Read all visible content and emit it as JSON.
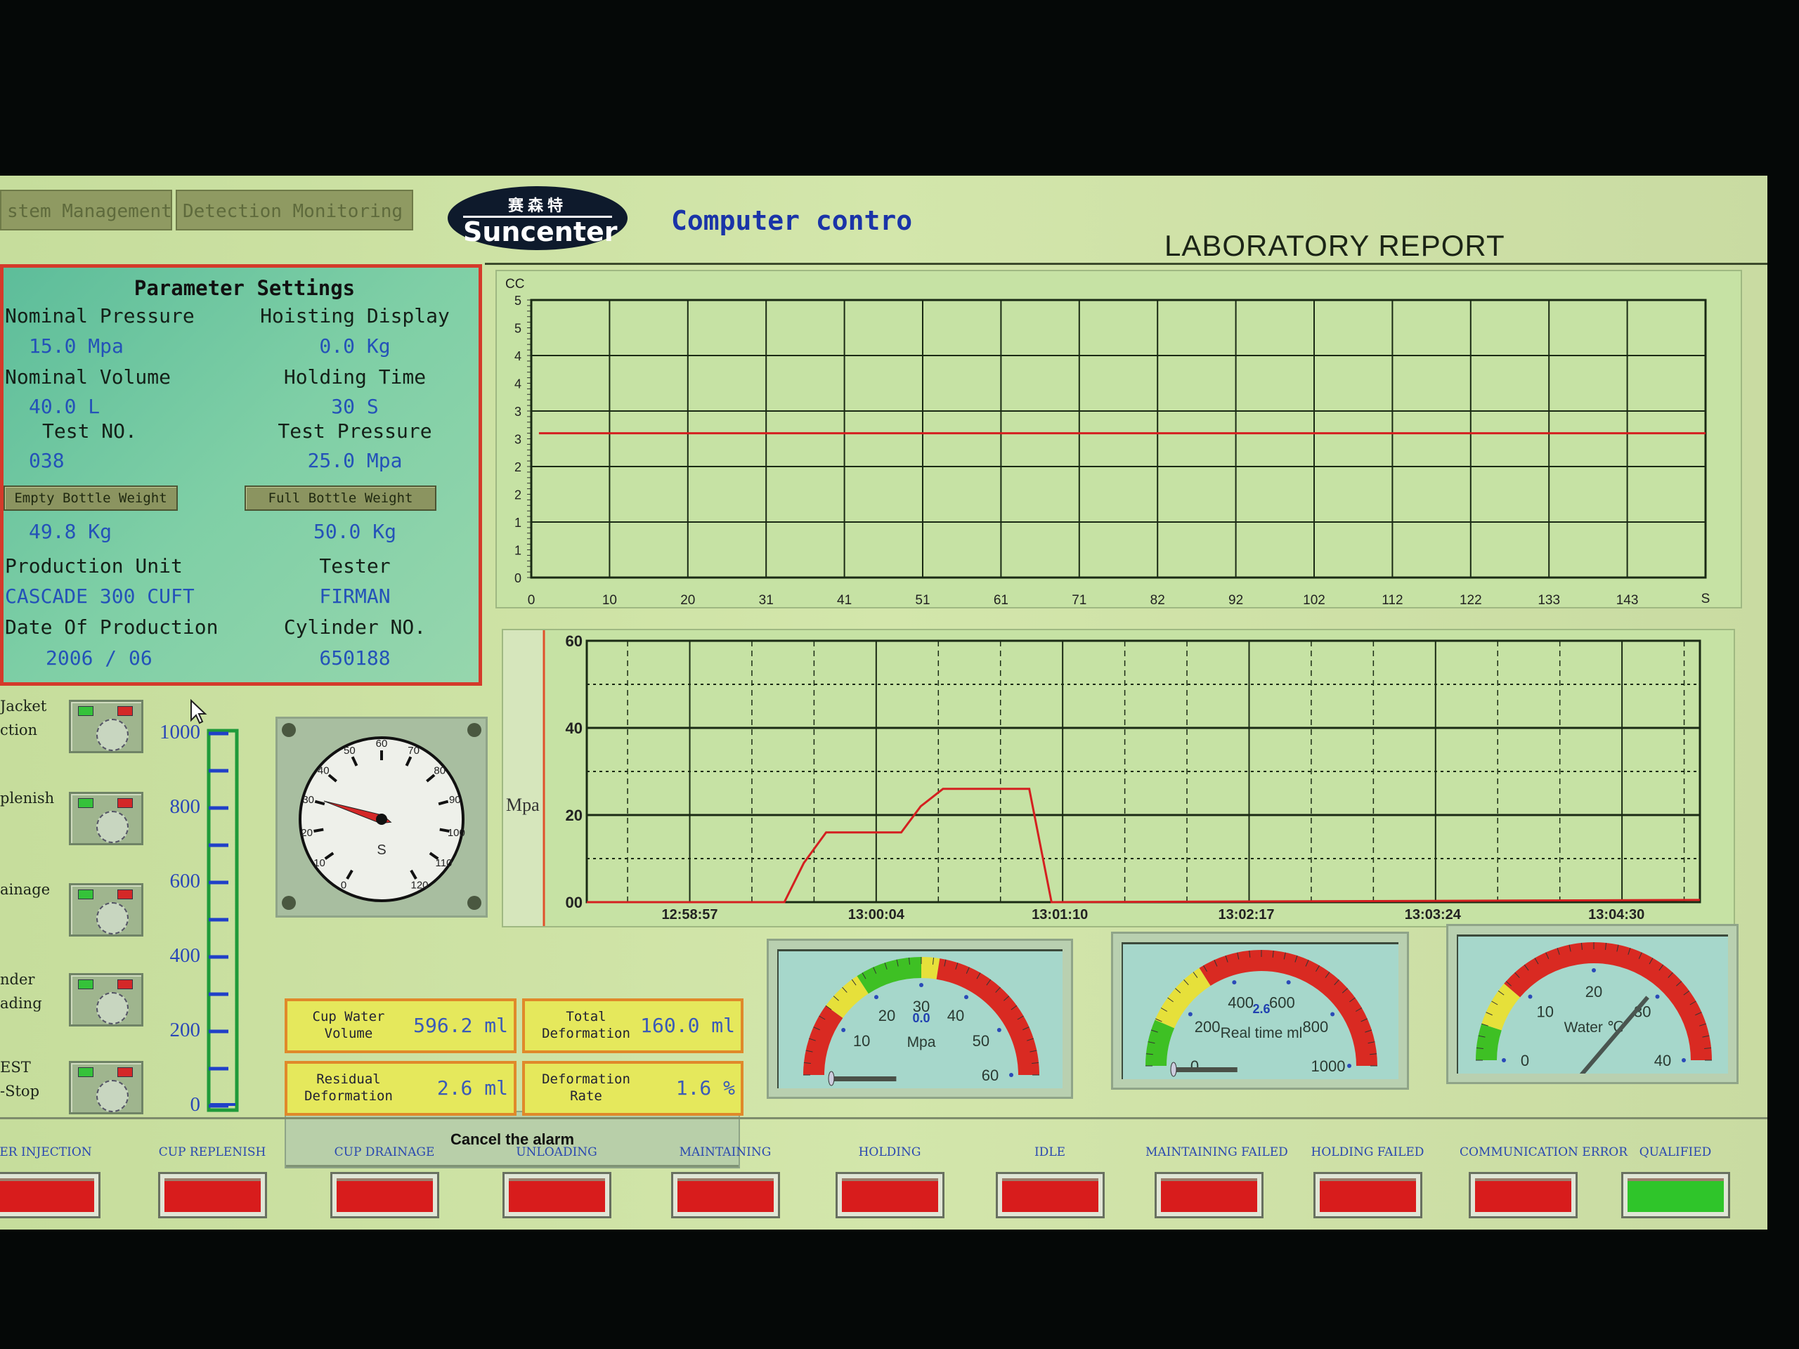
{
  "tabs": [
    {
      "label": "stem Management"
    },
    {
      "label": "Detection Monitoring"
    }
  ],
  "logo": {
    "cn": "赛森特",
    "en": "Suncenter"
  },
  "header": {
    "title": "Computer contro",
    "report_title": "LABORATORY REPORT"
  },
  "params": {
    "title": "Parameter Settings",
    "left": [
      {
        "label": "Nominal Pressure",
        "value": "15.0 Mpa"
      },
      {
        "label": "Nominal Volume",
        "value": "40.0  L"
      },
      {
        "label": "Test NO.",
        "value": "038"
      },
      {
        "label": "Empty Bottle Weight",
        "value": "49.8  Kg",
        "button": true
      },
      {
        "label": "Production Unit",
        "value": "CASCADE 300 CUFT"
      },
      {
        "label": "Date Of Production",
        "value": "2006 / 06"
      }
    ],
    "right": [
      {
        "label": "Hoisting Display",
        "value": "0.0  Kg"
      },
      {
        "label": "Holding Time",
        "value": "30  S"
      },
      {
        "label": "Test Pressure",
        "value": "25.0 Mpa"
      },
      {
        "label": "Full Bottle Weight",
        "value": "50.0 Kg",
        "button": true
      },
      {
        "label": "Tester",
        "value": "FIRMAN"
      },
      {
        "label": "Cylinder NO.",
        "value": "650188"
      }
    ]
  },
  "controls": {
    "switches": [
      {
        "label": "Jacket\nction"
      },
      {
        "label": "plenish"
      },
      {
        "label": "ainage"
      },
      {
        "label": "nder\nading"
      },
      {
        "label": "EST\n-Stop"
      }
    ],
    "switch_colors": {
      "on": "#35c23a",
      "off": "#d42828"
    },
    "level_scale": {
      "ticks": [
        "1000",
        "800",
        "600",
        "400",
        "200",
        "0"
      ],
      "min": 0,
      "max": 1000,
      "level": 0,
      "color": "#2040c8",
      "frame": "#1f9a3a"
    }
  },
  "timer_dial": {
    "ticks": [
      "0",
      "10",
      "20",
      "30",
      "40",
      "50",
      "60",
      "70",
      "80",
      "90",
      "100",
      "110",
      "120"
    ],
    "unit": "S",
    "min": 0,
    "max": 120,
    "needle_value": 31,
    "needle_color": "#d42828"
  },
  "cancel_alarm": {
    "label": "Cancel the alarm"
  },
  "readouts": [
    {
      "label": "Cup Water\nVolume",
      "value": "596.2 ml"
    },
    {
      "label": "Total\nDeformation",
      "value": "160.0 ml"
    },
    {
      "label": "Residual\nDeformation",
      "value": "2.6 ml"
    },
    {
      "label": "Deformation\nRate",
      "value": "1.6  %"
    }
  ],
  "gauges": [
    {
      "unit": "Mpa",
      "value_text": "0.0",
      "min": 0,
      "max": 60,
      "ticks": [
        "10",
        "20",
        "30",
        "40",
        "50",
        "60"
      ],
      "tick_values": [
        10,
        20,
        30,
        40,
        50,
        60
      ],
      "slider_value": 0,
      "segments": [
        {
          "from": 0,
          "to": 12,
          "color": "#d92a22"
        },
        {
          "from": 12,
          "to": 19,
          "color": "#e6e03a"
        },
        {
          "from": 19,
          "to": 30,
          "color": "#3ec024"
        },
        {
          "from": 30,
          "to": 33,
          "color": "#e6e03a"
        },
        {
          "from": 33,
          "to": 60,
          "color": "#d92a22"
        }
      ]
    },
    {
      "unit": "Real time ml",
      "value_text": "2.6",
      "min": 0,
      "max": 1000,
      "ticks": [
        "0",
        "200",
        "400",
        "600",
        "800",
        "1000"
      ],
      "tick_values": [
        0,
        200,
        400,
        600,
        800,
        1000
      ],
      "slider_value": 0,
      "segments": [
        {
          "from": 0,
          "to": 130,
          "color": "#3ec024"
        },
        {
          "from": 130,
          "to": 320,
          "color": "#e6e03a"
        },
        {
          "from": 320,
          "to": 1000,
          "color": "#d92a22"
        }
      ]
    },
    {
      "unit": "Water ℃",
      "value_text": "",
      "min": 0,
      "max": 40,
      "ticks": [
        "0",
        "10",
        "20",
        "30",
        "40"
      ],
      "tick_values": [
        0,
        10,
        20,
        30,
        40
      ],
      "needle_value": 29,
      "segments": [
        {
          "from": 0,
          "to": 4,
          "color": "#3ec024"
        },
        {
          "from": 4,
          "to": 9,
          "color": "#e6e03a"
        },
        {
          "from": 9,
          "to": 40,
          "color": "#d92a22"
        }
      ]
    }
  ],
  "status_lights": [
    {
      "label": "ER INJECTION",
      "color": "#d81c1c"
    },
    {
      "label": "CUP REPLENISH",
      "color": "#d81c1c"
    },
    {
      "label": "CUP DRAINAGE",
      "color": "#d81c1c"
    },
    {
      "label": "UNLOADING",
      "color": "#d81c1c"
    },
    {
      "label": "MAINTAINING",
      "color": "#d81c1c"
    },
    {
      "label": "HOLDING",
      "color": "#d81c1c"
    },
    {
      "label": "IDLE",
      "color": "#d81c1c"
    },
    {
      "label": "MAINTAINING FAILED",
      "color": "#d81c1c"
    },
    {
      "label": "HOLDING FAILED",
      "color": "#d81c1c"
    },
    {
      "label": "COMMUNICATION ERROR",
      "color": "#d81c1c"
    },
    {
      "label": "QUALIFIED",
      "color": "#2fc52a"
    }
  ],
  "chart_data": [
    {
      "type": "line",
      "ylabel": "CC",
      "xlabel": "S",
      "ylim": [
        0,
        5
      ],
      "y_ticks": [
        {
          "v": 0,
          "t": "0"
        },
        {
          "v": 0.5,
          "t": "1"
        },
        {
          "v": 1,
          "t": "1"
        },
        {
          "v": 1.5,
          "t": "2"
        },
        {
          "v": 2,
          "t": "2"
        },
        {
          "v": 2.5,
          "t": "3"
        },
        {
          "v": 3,
          "t": "3"
        },
        {
          "v": 3.5,
          "t": "4"
        },
        {
          "v": 4,
          "t": "4"
        },
        {
          "v": 4.5,
          "t": "5"
        },
        {
          "v": 5,
          "t": "5"
        }
      ],
      "xlim": [
        0,
        153
      ],
      "x_ticks": [
        {
          "v": 0,
          "t": "0"
        },
        {
          "v": 10.2,
          "t": "10"
        },
        {
          "v": 20.4,
          "t": "20"
        },
        {
          "v": 30.6,
          "t": "31"
        },
        {
          "v": 40.8,
          "t": "41"
        },
        {
          "v": 51,
          "t": "51"
        },
        {
          "v": 61.2,
          "t": "61"
        },
        {
          "v": 71.4,
          "t": "71"
        },
        {
          "v": 81.6,
          "t": "82"
        },
        {
          "v": 91.8,
          "t": "92"
        },
        {
          "v": 102,
          "t": "102"
        },
        {
          "v": 112.2,
          "t": "112"
        },
        {
          "v": 122.4,
          "t": "122"
        },
        {
          "v": 132.6,
          "t": "133"
        },
        {
          "v": 142.8,
          "t": "143"
        }
      ],
      "grid": true,
      "line_color": "#d42020",
      "series": [
        {
          "x": [
            1,
            153
          ],
          "y": [
            2.6,
            2.6
          ]
        }
      ]
    },
    {
      "type": "line",
      "ylabel": "Mpa",
      "ylim": [
        0,
        60
      ],
      "y_ticks": [
        {
          "v": 0,
          "t": "00"
        },
        {
          "v": 20,
          "t": "20"
        },
        {
          "v": 40,
          "t": "40"
        },
        {
          "v": 60,
          "t": "60"
        }
      ],
      "xlim": [
        "12:58:20",
        "13:05:00"
      ],
      "x_ticks": [
        "12:58:57",
        "13:00:04",
        "13:01:10",
        "13:02:17",
        "13:03:24",
        "13:04:30"
      ],
      "grid": true,
      "line_color": "#d42020",
      "series": [
        {
          "x": [
            "12:58:20",
            "12:59:31",
            "12:59:38",
            "12:59:46",
            "13:00:13",
            "13:00:20",
            "13:00:28",
            "13:00:59",
            "13:01:07",
            "13:05:00"
          ],
          "y": [
            0,
            0,
            9,
            16,
            16,
            22,
            26,
            26,
            0,
            0.5
          ]
        }
      ]
    }
  ]
}
